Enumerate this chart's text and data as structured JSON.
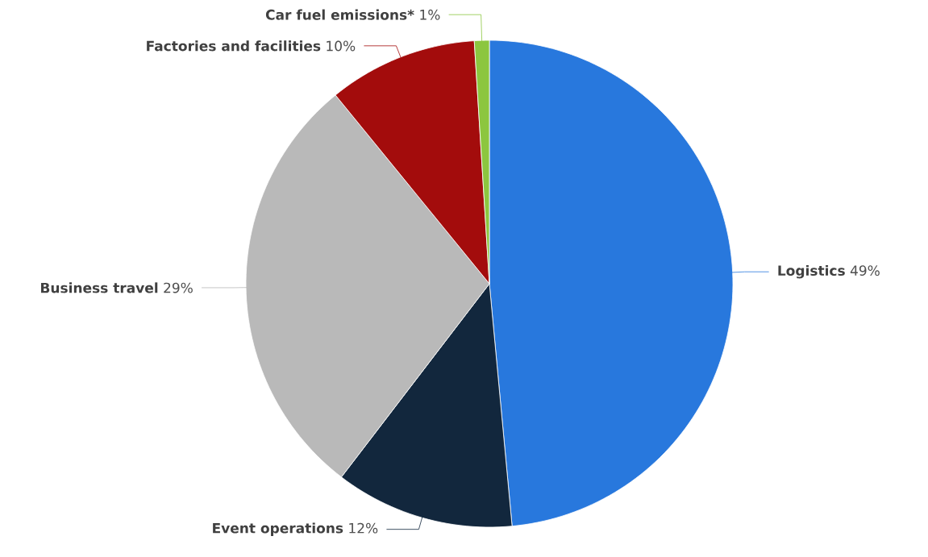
{
  "chart_data": {
    "type": "pie",
    "categories": [
      "Logistics",
      "Event operations",
      "Business travel",
      "Factories and facilities",
      "Car fuel emissions*"
    ],
    "values": [
      49,
      12,
      29,
      10,
      1
    ],
    "value_labels": [
      "49%",
      "12%",
      "29%",
      "10%",
      "1%"
    ],
    "colors": [
      "#2878dd",
      "#12273d",
      "#b9b9b9",
      "#a30c0c",
      "#8cc63f"
    ]
  }
}
